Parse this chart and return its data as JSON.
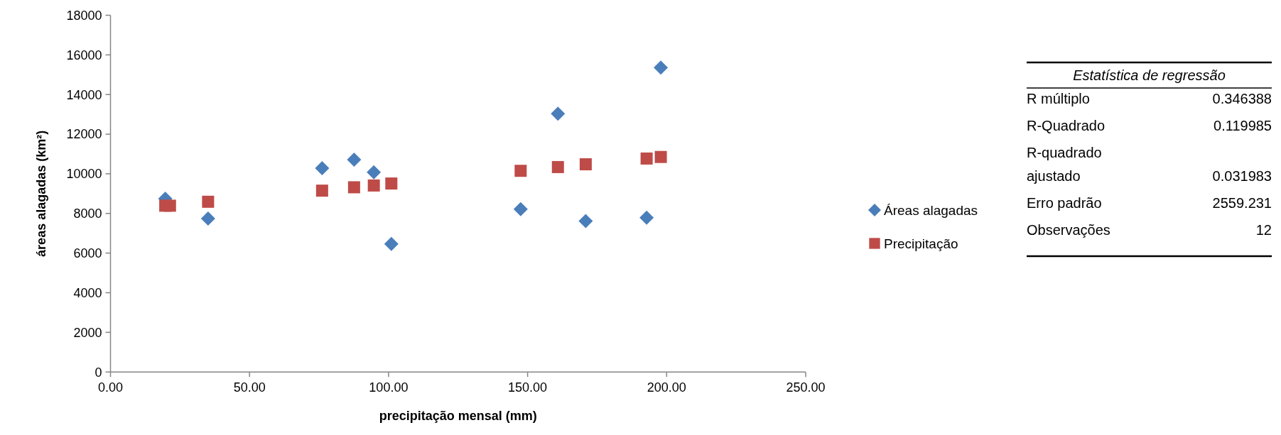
{
  "chart_data": [
    {
      "type": "scatter",
      "xlabel": "precipitação mensal (mm)",
      "ylabel": "áreas alagadas (km²)",
      "xlim": [
        0,
        250
      ],
      "xticks": [
        {
          "value": 0,
          "label": "0.00"
        },
        {
          "value": 50,
          "label": "50.00"
        },
        {
          "value": 100,
          "label": "100.00"
        },
        {
          "value": 150,
          "label": "150.00"
        },
        {
          "value": 200,
          "label": "200.00"
        },
        {
          "value": 250,
          "label": "250.00"
        }
      ],
      "ylim": [
        0,
        18000
      ],
      "yticks": [
        0,
        2000,
        4000,
        6000,
        8000,
        10000,
        12000,
        14000,
        16000,
        18000
      ],
      "x": [
        19.7,
        21.4,
        35.1,
        76.1,
        87.6,
        94.7,
        101.0,
        147.5,
        160.9,
        170.9,
        192.8,
        197.9
      ],
      "series": [
        {
          "name": "Áreas alagadas",
          "color": "#4a7ebb",
          "marker": "diamond",
          "values": [
            8740,
            null,
            7740,
            10280,
            10710,
            10080,
            6460,
            8220,
            13030,
            7620,
            7790,
            15360
          ]
        },
        {
          "name": "Precipitação",
          "color": "#be4b48",
          "marker": "square",
          "values": [
            8390,
            8390,
            8590,
            9150,
            9320,
            9410,
            9510,
            10150,
            10340,
            10480,
            10770,
            10850
          ]
        }
      ],
      "grid": false,
      "legend": "right"
    },
    {
      "type": "other",
      "title": "Estatística de regressão",
      "categories": [
        "R múltiplo",
        "R-Quadrado",
        "R-quadrado ajustado",
        "Erro padrão",
        "Observações"
      ],
      "values": [
        0.346388,
        0.119985,
        0.031983,
        2559.231,
        12
      ],
      "data_labels": true
    }
  ]
}
